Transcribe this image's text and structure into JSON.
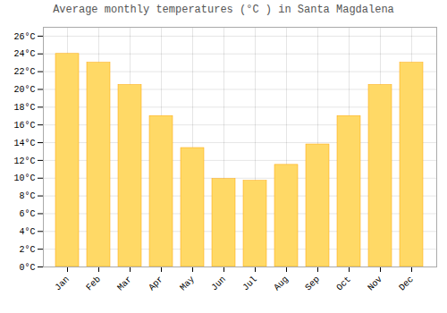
{
  "chart_data": {
    "type": "bar",
    "title": "Average monthly temperatures (°C ) in Santa Magdalena",
    "categories": [
      "Jan",
      "Feb",
      "Mar",
      "Apr",
      "May",
      "Jun",
      "Jul",
      "Aug",
      "Sep",
      "Oct",
      "Nov",
      "Dec"
    ],
    "values": [
      24.0,
      23.0,
      20.5,
      17.0,
      13.4,
      9.9,
      9.7,
      11.5,
      13.8,
      17.0,
      20.5,
      23.0
    ],
    "color": "#FFD966",
    "ylim": [
      0,
      27
    ],
    "yticks": [
      {
        "value": 0,
        "label": "0°C"
      },
      {
        "value": 2,
        "label": "2°C"
      },
      {
        "value": 4,
        "label": "4°C"
      },
      {
        "value": 6,
        "label": "6°C"
      },
      {
        "value": 8,
        "label": "8°C"
      },
      {
        "value": 10,
        "label": "10°C"
      },
      {
        "value": 12,
        "label": "12°C"
      },
      {
        "value": 14,
        "label": "14°C"
      },
      {
        "value": 16,
        "label": "16°C"
      },
      {
        "value": 18,
        "label": "18°C"
      },
      {
        "value": 20,
        "label": "20°C"
      },
      {
        "value": 22,
        "label": "22°C"
      },
      {
        "value": 24,
        "label": "24°C"
      },
      {
        "value": 26,
        "label": "26°C"
      }
    ],
    "grid": true
  }
}
